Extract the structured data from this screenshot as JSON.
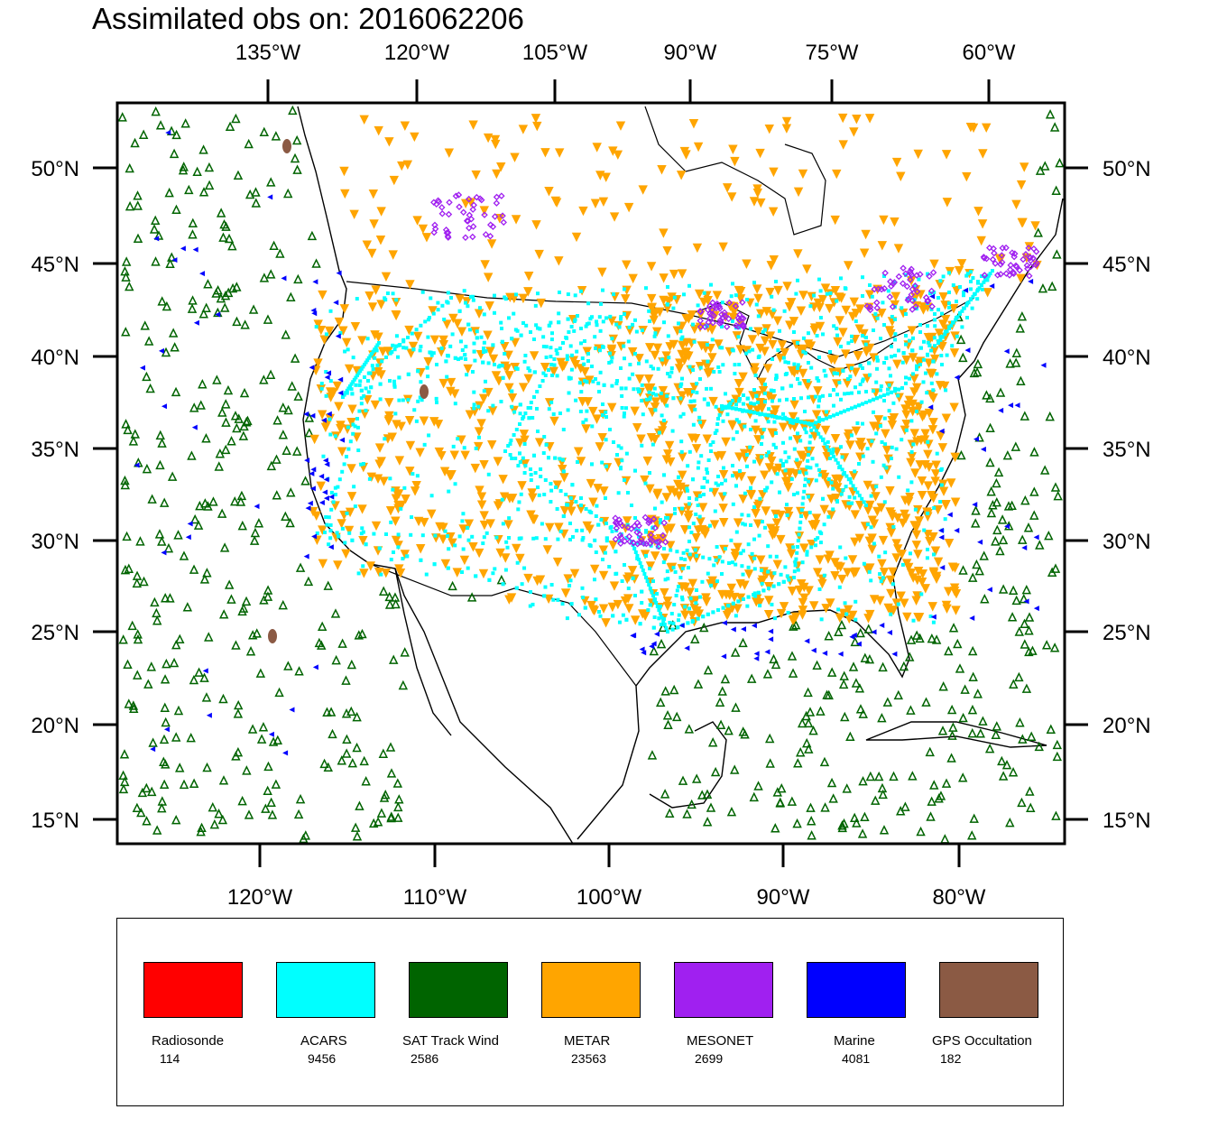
{
  "title": "Assimilated obs on: 2016062206",
  "map": {
    "top_lon_ticks": [
      "135°W",
      "120°W",
      "105°W",
      "90°W",
      "75°W",
      "60°W"
    ],
    "bottom_lon_ticks": [
      "120°W",
      "110°W",
      "100°W",
      "90°W",
      "80°W"
    ],
    "lat_ticks": [
      "50°N",
      "45°N",
      "40°N",
      "35°N",
      "30°N",
      "25°N",
      "20°N",
      "15°N"
    ],
    "extent": {
      "lon_min": -128.3,
      "lon_max": -74.0,
      "lat_min": 13.7,
      "lat_max": 53.5
    }
  },
  "legend": [
    {
      "name": "Radiosonde",
      "count": "114",
      "color": "#ff0000"
    },
    {
      "name": "ACARS",
      "count": "9456",
      "color": "#00ffff"
    },
    {
      "name": "SAT Track Wind",
      "count": "2586",
      "color": "#006400"
    },
    {
      "name": "METAR",
      "count": "23563",
      "color": "#ffa500"
    },
    {
      "name": "MESONET",
      "count": "2699",
      "color": "#a020f0"
    },
    {
      "name": "Marine",
      "count": "4081",
      "color": "#0000ff"
    },
    {
      "name": "GPS Occultation",
      "count": "182",
      "color": "#8b5a44"
    }
  ]
}
